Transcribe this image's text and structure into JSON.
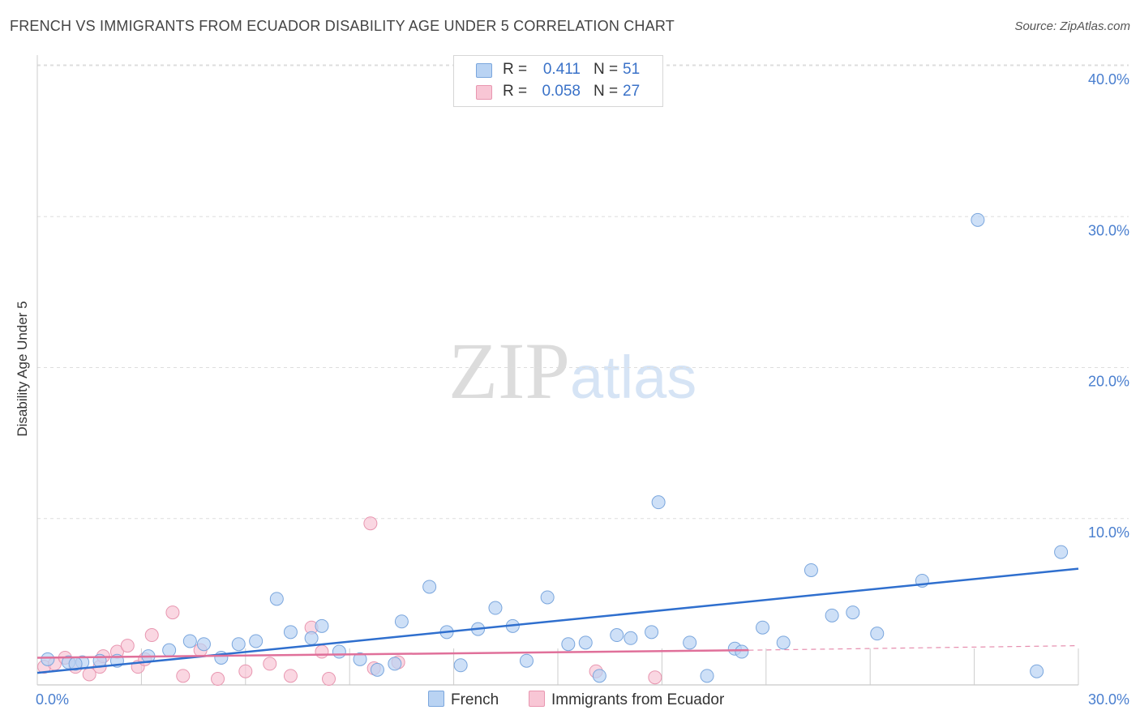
{
  "title": "FRENCH VS IMMIGRANTS FROM ECUADOR DISABILITY AGE UNDER 5 CORRELATION CHART",
  "source": "Source: ZipAtlas.com",
  "watermark": {
    "zip": "ZIP",
    "atlas": "atlas"
  },
  "legend": {
    "rows": [
      {
        "r_label": "R =",
        "r_value": "0.411",
        "n_label": "N =",
        "n_value": "51"
      },
      {
        "r_label": "R =",
        "r_value": "0.058",
        "n_label": "N =",
        "n_value": "27"
      }
    ]
  },
  "bottom_legend": [
    "French",
    "Immigrants from Ecuador"
  ],
  "colors": {
    "french_fill": "#b9d3f3",
    "french_stroke": "#7aa6dd",
    "french_line": "#2f6fce",
    "ecuador_fill": "#f8c6d5",
    "ecuador_stroke": "#e896b0",
    "ecuador_line": "#e0709a",
    "tick": "#4a7fcf",
    "grid": "#dddddd"
  },
  "chart_data": {
    "type": "scatter",
    "title": "FRENCH VS IMMIGRANTS FROM ECUADOR DISABILITY AGE UNDER 5 CORRELATION CHART",
    "xlabel": "",
    "ylabel": "Disability Age Under 5",
    "xlim": [
      0,
      30
    ],
    "ylim": [
      0,
      40
    ],
    "x_tick_labels": [
      "0.0%",
      "30.0%"
    ],
    "y_ticks": [
      10,
      20,
      30,
      40
    ],
    "y_tick_labels": [
      "10.0%",
      "20.0%",
      "30.0%",
      "40.0%"
    ],
    "grid": true,
    "legend_position": "top-center",
    "series": [
      {
        "name": "French",
        "points": [
          [
            0.3,
            1.7
          ],
          [
            0.9,
            1.5
          ],
          [
            1.3,
            1.5
          ],
          [
            1.8,
            1.6
          ],
          [
            2.3,
            1.6
          ],
          [
            3.2,
            1.9
          ],
          [
            3.8,
            2.3
          ],
          [
            4.4,
            2.9
          ],
          [
            4.8,
            2.7
          ],
          [
            5.3,
            1.8
          ],
          [
            5.8,
            2.7
          ],
          [
            6.3,
            2.9
          ],
          [
            6.9,
            5.7
          ],
          [
            7.3,
            3.5
          ],
          [
            7.9,
            3.1
          ],
          [
            8.2,
            3.9
          ],
          [
            8.7,
            2.2
          ],
          [
            9.3,
            1.7
          ],
          [
            9.8,
            1.0
          ],
          [
            10.3,
            1.4
          ],
          [
            10.5,
            4.2
          ],
          [
            11.3,
            6.5
          ],
          [
            11.8,
            3.5
          ],
          [
            12.2,
            1.3
          ],
          [
            12.7,
            3.7
          ],
          [
            13.2,
            5.1
          ],
          [
            13.7,
            3.9
          ],
          [
            14.1,
            1.6
          ],
          [
            14.7,
            5.8
          ],
          [
            15.3,
            2.7
          ],
          [
            15.8,
            2.8
          ],
          [
            16.2,
            0.6
          ],
          [
            16.7,
            3.3
          ],
          [
            17.1,
            3.1
          ],
          [
            17.7,
            3.5
          ],
          [
            17.9,
            12.1
          ],
          [
            18.8,
            2.8
          ],
          [
            19.3,
            0.6
          ],
          [
            20.1,
            2.4
          ],
          [
            20.3,
            2.2
          ],
          [
            20.9,
            3.8
          ],
          [
            21.5,
            2.8
          ],
          [
            22.3,
            7.6
          ],
          [
            22.9,
            4.6
          ],
          [
            23.5,
            4.8
          ],
          [
            24.2,
            3.4
          ],
          [
            25.5,
            6.9
          ],
          [
            27.1,
            30.8
          ],
          [
            28.8,
            0.9
          ],
          [
            29.5,
            8.8
          ],
          [
            1.1,
            1.4
          ]
        ],
        "trend": {
          "x": [
            0,
            30
          ],
          "y": [
            0.8,
            7.7
          ]
        }
      },
      {
        "name": "Immigrants from Ecuador",
        "points": [
          [
            0.2,
            1.2
          ],
          [
            0.5,
            1.4
          ],
          [
            0.8,
            1.8
          ],
          [
            1.1,
            1.2
          ],
          [
            1.5,
            0.7
          ],
          [
            1.8,
            1.2
          ],
          [
            1.9,
            1.9
          ],
          [
            2.3,
            2.2
          ],
          [
            2.6,
            2.6
          ],
          [
            2.9,
            1.2
          ],
          [
            3.1,
            1.7
          ],
          [
            3.3,
            3.3
          ],
          [
            3.9,
            4.8
          ],
          [
            4.2,
            0.6
          ],
          [
            4.7,
            2.3
          ],
          [
            5.2,
            0.4
          ],
          [
            6.0,
            0.9
          ],
          [
            6.7,
            1.4
          ],
          [
            7.3,
            0.6
          ],
          [
            7.9,
            3.8
          ],
          [
            8.2,
            2.2
          ],
          [
            8.4,
            0.4
          ],
          [
            9.6,
            10.7
          ],
          [
            9.7,
            1.1
          ],
          [
            10.4,
            1.5
          ],
          [
            16.1,
            0.9
          ],
          [
            17.8,
            0.5
          ]
        ],
        "trend": {
          "x": [
            0,
            20.5
          ],
          "y": [
            1.8,
            2.3
          ]
        },
        "trend_extension": {
          "x": [
            20.5,
            30
          ],
          "y": [
            2.3,
            2.6
          ]
        }
      }
    ]
  }
}
